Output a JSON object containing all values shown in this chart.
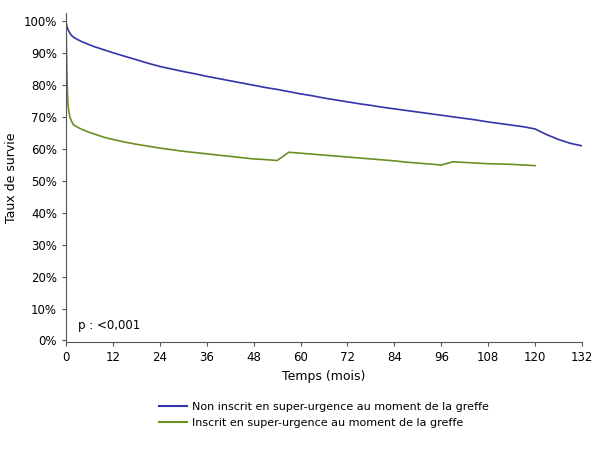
{
  "title": "",
  "xlabel": "Temps (mois)",
  "ylabel": "Taux de survie",
  "xlim": [
    0,
    132
  ],
  "ylim": [
    -0.005,
    1.025
  ],
  "xticks": [
    0,
    12,
    24,
    36,
    48,
    60,
    72,
    84,
    96,
    108,
    120,
    132
  ],
  "yticks": [
    0.0,
    0.1,
    0.2,
    0.3,
    0.4,
    0.5,
    0.6,
    0.7,
    0.8,
    0.9,
    1.0
  ],
  "pvalue_text": "p : <0,001",
  "legend_labels": [
    "Non inscrit en super-urgence au moment de la greffe",
    "Inscrit en super-urgence au moment de la greffe"
  ],
  "blue_color": "#3333AA",
  "green_color": "#6B8E23",
  "blue_x": [
    0,
    0.2,
    0.5,
    1,
    1.5,
    2,
    3,
    4,
    5,
    6,
    7,
    8,
    9,
    10,
    11,
    12,
    15,
    18,
    21,
    24,
    27,
    30,
    33,
    36,
    39,
    42,
    45,
    48,
    51,
    54,
    57,
    60,
    63,
    66,
    69,
    72,
    75,
    78,
    81,
    84,
    87,
    90,
    93,
    96,
    99,
    102,
    105,
    108,
    111,
    114,
    117,
    120,
    123,
    126,
    129,
    132
  ],
  "blue_y": [
    1.0,
    0.985,
    0.975,
    0.963,
    0.955,
    0.95,
    0.943,
    0.937,
    0.932,
    0.927,
    0.922,
    0.918,
    0.914,
    0.91,
    0.906,
    0.902,
    0.891,
    0.88,
    0.869,
    0.859,
    0.851,
    0.843,
    0.836,
    0.828,
    0.821,
    0.814,
    0.807,
    0.8,
    0.793,
    0.787,
    0.78,
    0.773,
    0.767,
    0.76,
    0.754,
    0.748,
    0.742,
    0.737,
    0.731,
    0.726,
    0.721,
    0.716,
    0.711,
    0.706,
    0.701,
    0.696,
    0.691,
    0.685,
    0.68,
    0.675,
    0.67,
    0.663,
    0.645,
    0.63,
    0.618,
    0.61
  ],
  "green_x": [
    0,
    0.1,
    0.2,
    0.3,
    0.5,
    0.7,
    1,
    1.5,
    2,
    3,
    4,
    5,
    6,
    7,
    8,
    9,
    10,
    11,
    12,
    15,
    18,
    21,
    24,
    27,
    30,
    33,
    36,
    39,
    42,
    45,
    48,
    51,
    54,
    57,
    60,
    63,
    66,
    69,
    72,
    75,
    78,
    81,
    84,
    87,
    90,
    93,
    96,
    99,
    102,
    105,
    108,
    111,
    114,
    117,
    120
  ],
  "green_y": [
    1.0,
    0.93,
    0.87,
    0.8,
    0.74,
    0.72,
    0.7,
    0.685,
    0.675,
    0.668,
    0.662,
    0.657,
    0.652,
    0.648,
    0.644,
    0.64,
    0.636,
    0.633,
    0.63,
    0.622,
    0.615,
    0.609,
    0.603,
    0.598,
    0.593,
    0.589,
    0.585,
    0.581,
    0.577,
    0.573,
    0.569,
    0.567,
    0.564,
    0.59,
    0.587,
    0.584,
    0.581,
    0.578,
    0.575,
    0.572,
    0.569,
    0.566,
    0.563,
    0.559,
    0.556,
    0.553,
    0.55,
    0.56,
    0.558,
    0.556,
    0.554,
    0.553,
    0.552,
    0.55,
    0.548
  ]
}
